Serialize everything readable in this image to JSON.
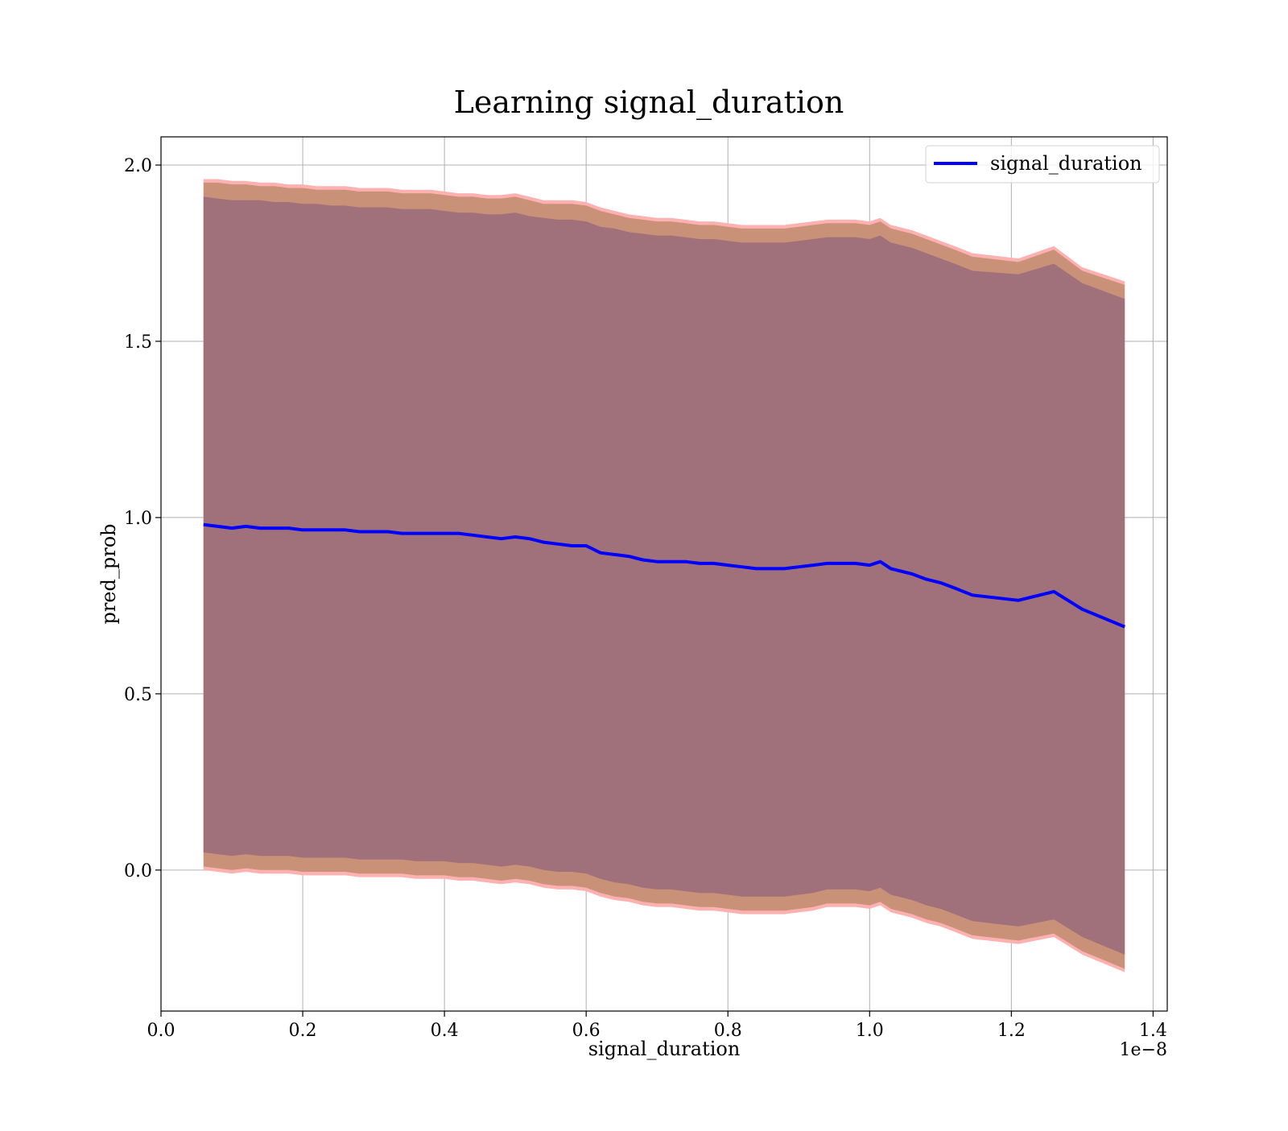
{
  "chart_data": {
    "type": "line",
    "title": "Learning signal_duration",
    "xlabel": "signal_duration",
    "ylabel": "pred_prob",
    "x_offset_label": "1e−8",
    "xlim": [
      0.0,
      1.42
    ],
    "ylim": [
      -0.4,
      2.08
    ],
    "x_ticks": [
      0.0,
      0.2,
      0.4,
      0.6,
      0.8,
      1.0,
      1.2,
      1.4
    ],
    "x_tick_labels": [
      "0.0",
      "0.2",
      "0.4",
      "0.6",
      "0.8",
      "1.0",
      "1.2",
      "1.4"
    ],
    "y_ticks": [
      0.0,
      0.5,
      1.0,
      1.5,
      2.0
    ],
    "y_tick_labels": [
      "0.0",
      "0.5",
      "1.0",
      "1.5",
      "2.0"
    ],
    "grid": true,
    "legend_position": "top-right",
    "colors": {
      "line": "#0000ff",
      "band_outer": "#ffb0b0",
      "band_middle": "#c89178",
      "band_inner": "#a1717b",
      "grid": "#b0b0b0"
    },
    "series": [
      {
        "name": "signal_duration",
        "x": [
          0.06,
          0.08,
          0.1,
          0.12,
          0.14,
          0.16,
          0.18,
          0.2,
          0.22,
          0.24,
          0.26,
          0.28,
          0.3,
          0.32,
          0.34,
          0.36,
          0.38,
          0.4,
          0.42,
          0.44,
          0.46,
          0.48,
          0.5,
          0.52,
          0.54,
          0.56,
          0.58,
          0.6,
          0.62,
          0.64,
          0.66,
          0.68,
          0.7,
          0.72,
          0.74,
          0.76,
          0.78,
          0.8,
          0.82,
          0.84,
          0.86,
          0.88,
          0.9,
          0.92,
          0.94,
          0.96,
          0.98,
          1.0,
          1.015,
          1.03,
          1.06,
          1.08,
          1.1,
          1.12,
          1.145,
          1.21,
          1.26,
          1.3,
          1.36
        ],
        "y": [
          0.98,
          0.975,
          0.97,
          0.975,
          0.97,
          0.97,
          0.97,
          0.965,
          0.965,
          0.965,
          0.965,
          0.96,
          0.96,
          0.96,
          0.955,
          0.955,
          0.955,
          0.955,
          0.955,
          0.95,
          0.945,
          0.94,
          0.945,
          0.94,
          0.93,
          0.925,
          0.92,
          0.92,
          0.9,
          0.895,
          0.89,
          0.88,
          0.875,
          0.875,
          0.875,
          0.87,
          0.87,
          0.865,
          0.86,
          0.855,
          0.855,
          0.855,
          0.86,
          0.865,
          0.87,
          0.87,
          0.87,
          0.865,
          0.875,
          0.855,
          0.84,
          0.825,
          0.815,
          0.8,
          0.78,
          0.765,
          0.79,
          0.74,
          0.69
        ],
        "upper_outer": [
          1.96,
          1.96,
          1.955,
          1.955,
          1.95,
          1.95,
          1.945,
          1.945,
          1.94,
          1.94,
          1.94,
          1.935,
          1.935,
          1.935,
          1.93,
          1.93,
          1.93,
          1.925,
          1.92,
          1.92,
          1.915,
          1.915,
          1.92,
          1.91,
          1.9,
          1.9,
          1.9,
          1.895,
          1.88,
          1.87,
          1.86,
          1.855,
          1.85,
          1.85,
          1.845,
          1.84,
          1.84,
          1.835,
          1.83,
          1.83,
          1.83,
          1.83,
          1.835,
          1.84,
          1.845,
          1.845,
          1.845,
          1.84,
          1.85,
          1.83,
          1.815,
          1.8,
          1.785,
          1.77,
          1.75,
          1.735,
          1.77,
          1.71,
          1.67
        ],
        "upper_middle": [
          1.95,
          1.95,
          1.945,
          1.945,
          1.94,
          1.94,
          1.935,
          1.935,
          1.93,
          1.93,
          1.93,
          1.925,
          1.925,
          1.925,
          1.92,
          1.92,
          1.92,
          1.915,
          1.91,
          1.91,
          1.905,
          1.905,
          1.91,
          1.9,
          1.89,
          1.89,
          1.89,
          1.885,
          1.87,
          1.86,
          1.85,
          1.845,
          1.84,
          1.84,
          1.835,
          1.83,
          1.83,
          1.825,
          1.82,
          1.82,
          1.82,
          1.82,
          1.825,
          1.83,
          1.835,
          1.835,
          1.835,
          1.83,
          1.84,
          1.82,
          1.805,
          1.79,
          1.775,
          1.76,
          1.74,
          1.725,
          1.76,
          1.7,
          1.66
        ],
        "upper_inner": [
          1.91,
          1.905,
          1.9,
          1.9,
          1.9,
          1.895,
          1.895,
          1.89,
          1.89,
          1.885,
          1.885,
          1.88,
          1.88,
          1.88,
          1.875,
          1.875,
          1.875,
          1.87,
          1.865,
          1.865,
          1.86,
          1.86,
          1.865,
          1.855,
          1.85,
          1.845,
          1.845,
          1.84,
          1.825,
          1.82,
          1.81,
          1.805,
          1.8,
          1.8,
          1.795,
          1.79,
          1.79,
          1.785,
          1.78,
          1.78,
          1.78,
          1.78,
          1.785,
          1.79,
          1.795,
          1.795,
          1.795,
          1.79,
          1.8,
          1.78,
          1.765,
          1.75,
          1.735,
          1.72,
          1.7,
          1.69,
          1.72,
          1.665,
          1.62
        ],
        "lower_inner": [
          0.05,
          0.045,
          0.04,
          0.045,
          0.04,
          0.04,
          0.04,
          0.035,
          0.035,
          0.035,
          0.035,
          0.03,
          0.03,
          0.03,
          0.03,
          0.025,
          0.025,
          0.025,
          0.02,
          0.02,
          0.015,
          0.01,
          0.015,
          0.01,
          0.0,
          -0.005,
          -0.005,
          -0.01,
          -0.025,
          -0.035,
          -0.04,
          -0.05,
          -0.055,
          -0.055,
          -0.06,
          -0.065,
          -0.065,
          -0.07,
          -0.075,
          -0.075,
          -0.075,
          -0.075,
          -0.07,
          -0.065,
          -0.055,
          -0.055,
          -0.055,
          -0.06,
          -0.05,
          -0.07,
          -0.085,
          -0.1,
          -0.11,
          -0.125,
          -0.145,
          -0.16,
          -0.14,
          -0.19,
          -0.24
        ],
        "lower_middle": [
          0.01,
          0.005,
          0.0,
          0.005,
          0.0,
          0.0,
          0.0,
          -0.005,
          -0.005,
          -0.005,
          -0.005,
          -0.01,
          -0.01,
          -0.01,
          -0.01,
          -0.015,
          -0.015,
          -0.015,
          -0.02,
          -0.02,
          -0.025,
          -0.03,
          -0.025,
          -0.03,
          -0.04,
          -0.045,
          -0.045,
          -0.05,
          -0.065,
          -0.075,
          -0.08,
          -0.09,
          -0.095,
          -0.095,
          -0.1,
          -0.105,
          -0.105,
          -0.11,
          -0.115,
          -0.115,
          -0.115,
          -0.115,
          -0.11,
          -0.105,
          -0.095,
          -0.095,
          -0.095,
          -0.1,
          -0.09,
          -0.11,
          -0.125,
          -0.14,
          -0.15,
          -0.165,
          -0.185,
          -0.2,
          -0.18,
          -0.23,
          -0.28
        ],
        "lower_outer": [
          0.0,
          -0.005,
          -0.01,
          -0.005,
          -0.01,
          -0.01,
          -0.01,
          -0.015,
          -0.015,
          -0.015,
          -0.015,
          -0.02,
          -0.02,
          -0.02,
          -0.02,
          -0.025,
          -0.025,
          -0.025,
          -0.03,
          -0.03,
          -0.035,
          -0.04,
          -0.035,
          -0.04,
          -0.05,
          -0.055,
          -0.055,
          -0.06,
          -0.075,
          -0.085,
          -0.09,
          -0.1,
          -0.105,
          -0.105,
          -0.11,
          -0.115,
          -0.115,
          -0.12,
          -0.125,
          -0.125,
          -0.125,
          -0.125,
          -0.12,
          -0.115,
          -0.105,
          -0.105,
          -0.105,
          -0.11,
          -0.1,
          -0.12,
          -0.135,
          -0.15,
          -0.16,
          -0.175,
          -0.195,
          -0.21,
          -0.19,
          -0.24,
          -0.29
        ]
      }
    ]
  }
}
